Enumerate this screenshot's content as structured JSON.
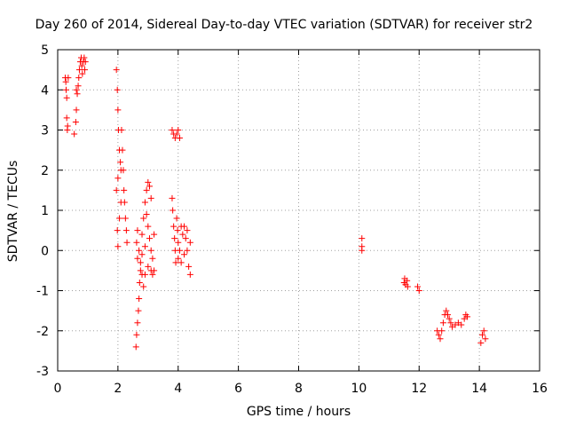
{
  "chart_data": {
    "type": "scatter",
    "title": "Day 260 of 2014, Sidereal Day-to-day VTEC variation (SDTVAR) for receiver str2",
    "xlabel": "GPS time / hours",
    "ylabel": "SDTVAR / TECUs",
    "xlim": [
      0,
      16
    ],
    "ylim": [
      -3,
      5
    ],
    "xticks": [
      "0",
      "2",
      "4",
      "6",
      "8",
      "10",
      "12",
      "14",
      "16"
    ],
    "yticks": [
      "-3",
      "-2",
      "-1",
      "0",
      "1",
      "2",
      "3",
      "4",
      "5"
    ],
    "grid": true,
    "legend": "none",
    "marker": "plus",
    "marker_color": "#ff0000",
    "series": [
      {
        "points": [
          [
            0.25,
            4.3
          ],
          [
            0.27,
            4.2
          ],
          [
            0.28,
            4.0
          ],
          [
            0.3,
            3.8
          ],
          [
            0.3,
            3.3
          ],
          [
            0.32,
            3.0
          ],
          [
            0.33,
            3.1
          ],
          [
            0.35,
            4.3
          ],
          [
            0.55,
            2.9
          ],
          [
            0.6,
            3.2
          ],
          [
            0.62,
            3.5
          ],
          [
            0.62,
            4.0
          ],
          [
            0.65,
            3.9
          ],
          [
            0.68,
            4.1
          ],
          [
            0.7,
            4.3
          ],
          [
            0.72,
            4.5
          ],
          [
            0.75,
            4.7
          ],
          [
            0.78,
            4.8
          ],
          [
            0.8,
            4.6
          ],
          [
            0.82,
            4.4
          ],
          [
            0.85,
            4.7
          ],
          [
            0.88,
            4.8
          ],
          [
            0.9,
            4.5
          ],
          [
            0.92,
            4.7
          ],
          [
            1.95,
            4.5
          ],
          [
            1.98,
            4.0
          ],
          [
            2.0,
            3.5
          ],
          [
            2.02,
            3.0
          ],
          [
            2.05,
            2.5
          ],
          [
            2.08,
            2.2
          ],
          [
            2.1,
            2.0
          ],
          [
            2.0,
            1.8
          ],
          [
            1.95,
            1.5
          ],
          [
            1.98,
            0.5
          ],
          [
            2.0,
            0.1
          ],
          [
            2.05,
            0.8
          ],
          [
            2.1,
            1.2
          ],
          [
            2.12,
            3.0
          ],
          [
            2.15,
            2.5
          ],
          [
            2.18,
            2.0
          ],
          [
            2.2,
            1.5
          ],
          [
            2.22,
            1.2
          ],
          [
            2.25,
            0.8
          ],
          [
            2.28,
            0.5
          ],
          [
            2.3,
            0.2
          ],
          [
            2.6,
            -2.4
          ],
          [
            2.62,
            -2.1
          ],
          [
            2.65,
            -1.8
          ],
          [
            2.68,
            -1.5
          ],
          [
            2.7,
            -1.2
          ],
          [
            2.72,
            -0.8
          ],
          [
            2.75,
            -0.5
          ],
          [
            2.65,
            -0.2
          ],
          [
            2.62,
            0.2
          ],
          [
            2.65,
            0.5
          ],
          [
            2.7,
            0.0
          ],
          [
            2.75,
            -0.3
          ],
          [
            2.8,
            -0.6
          ],
          [
            2.85,
            -0.9
          ],
          [
            2.9,
            -0.6
          ],
          [
            2.8,
            0.4
          ],
          [
            2.85,
            0.8
          ],
          [
            2.9,
            1.2
          ],
          [
            2.95,
            1.5
          ],
          [
            3.0,
            1.7
          ],
          [
            3.05,
            1.6
          ],
          [
            3.1,
            1.3
          ],
          [
            3.0,
            0.6
          ],
          [
            3.05,
            0.3
          ],
          [
            3.1,
            0.0
          ],
          [
            3.15,
            -0.2
          ],
          [
            3.1,
            -0.5
          ],
          [
            3.15,
            -0.6
          ],
          [
            3.2,
            -0.5
          ],
          [
            3.2,
            0.4
          ],
          [
            2.95,
            0.9
          ],
          [
            3.0,
            -0.4
          ],
          [
            2.9,
            0.1
          ],
          [
            2.8,
            -0.1
          ],
          [
            3.8,
            1.3
          ],
          [
            3.82,
            1.0
          ],
          [
            3.85,
            0.6
          ],
          [
            3.88,
            0.3
          ],
          [
            3.9,
            0.0
          ],
          [
            3.92,
            -0.3
          ],
          [
            3.95,
            0.8
          ],
          [
            3.98,
            0.5
          ],
          [
            4.0,
            0.2
          ],
          [
            4.05,
            0.0
          ],
          [
            4.1,
            -0.3
          ],
          [
            4.15,
            0.4
          ],
          [
            4.2,
            0.6
          ],
          [
            4.25,
            0.3
          ],
          [
            4.3,
            0.0
          ],
          [
            4.35,
            -0.4
          ],
          [
            4.4,
            -0.6
          ],
          [
            4.0,
            -0.2
          ],
          [
            4.1,
            0.6
          ],
          [
            4.2,
            -0.1
          ],
          [
            4.3,
            0.5
          ],
          [
            4.4,
            0.2
          ],
          [
            3.8,
            3.0
          ],
          [
            3.85,
            2.9
          ],
          [
            3.9,
            2.8
          ],
          [
            3.95,
            2.9
          ],
          [
            4.0,
            3.0
          ],
          [
            4.05,
            2.8
          ],
          [
            10.1,
            0.3
          ],
          [
            10.1,
            0.1
          ],
          [
            10.1,
            0.0
          ],
          [
            11.5,
            -0.8
          ],
          [
            11.52,
            -0.7
          ],
          [
            11.55,
            -0.85
          ],
          [
            11.6,
            -0.75
          ],
          [
            11.62,
            -0.9
          ],
          [
            11.95,
            -0.9
          ],
          [
            12.0,
            -1.0
          ],
          [
            12.6,
            -2.0
          ],
          [
            12.65,
            -2.1
          ],
          [
            12.7,
            -2.2
          ],
          [
            12.75,
            -2.0
          ],
          [
            12.8,
            -1.8
          ],
          [
            12.85,
            -1.6
          ],
          [
            12.9,
            -1.5
          ],
          [
            12.95,
            -1.6
          ],
          [
            13.0,
            -1.7
          ],
          [
            13.05,
            -1.8
          ],
          [
            13.1,
            -1.9
          ],
          [
            13.2,
            -1.85
          ],
          [
            13.3,
            -1.8
          ],
          [
            13.4,
            -1.85
          ],
          [
            13.5,
            -1.7
          ],
          [
            13.55,
            -1.6
          ],
          [
            13.6,
            -1.65
          ],
          [
            14.05,
            -2.3
          ],
          [
            14.1,
            -2.1
          ],
          [
            14.15,
            -2.0
          ],
          [
            14.2,
            -2.2
          ]
        ]
      }
    ]
  }
}
